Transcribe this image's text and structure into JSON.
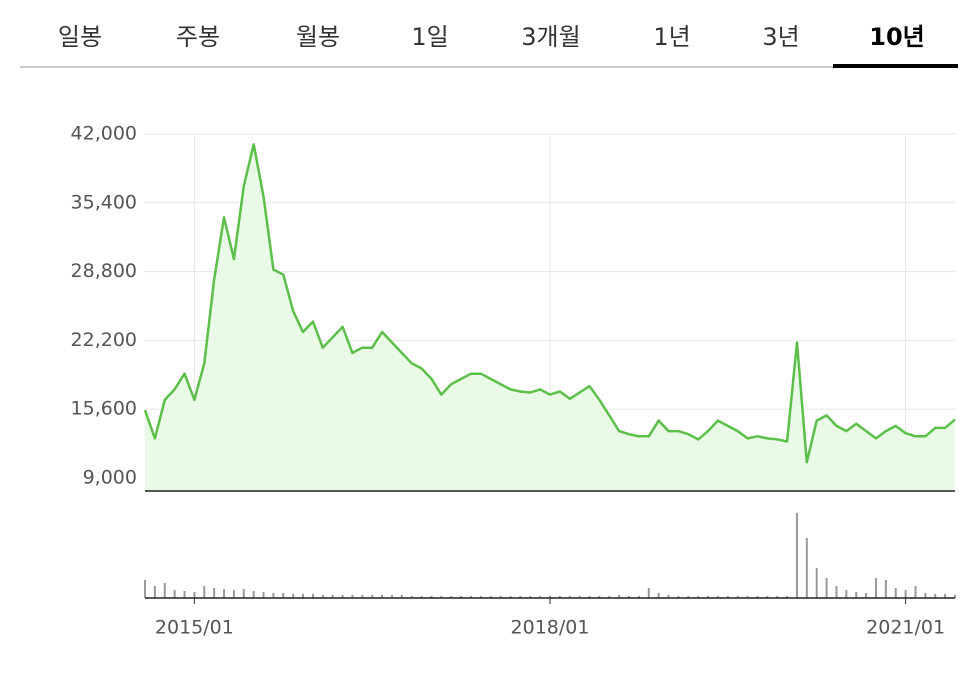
{
  "tabs": [
    "일봉",
    "주봉",
    "월봉",
    "1일",
    "3개월",
    "1년",
    "3년",
    "10년"
  ],
  "selected_tab": "10년",
  "chart_data": {
    "type": "line",
    "x": [
      "2014/08",
      "2014/09",
      "2014/10",
      "2014/11",
      "2014/12",
      "2015/01",
      "2015/02",
      "2015/03",
      "2015/04",
      "2015/05",
      "2015/06",
      "2015/07",
      "2015/08",
      "2015/09",
      "2015/10",
      "2015/11",
      "2015/12",
      "2016/01",
      "2016/02",
      "2016/03",
      "2016/04",
      "2016/05",
      "2016/06",
      "2016/07",
      "2016/08",
      "2016/09",
      "2016/10",
      "2016/11",
      "2016/12",
      "2017/01",
      "2017/02",
      "2017/03",
      "2017/04",
      "2017/05",
      "2017/06",
      "2017/07",
      "2017/08",
      "2017/09",
      "2017/10",
      "2017/11",
      "2017/12",
      "2018/01",
      "2018/02",
      "2018/03",
      "2018/04",
      "2018/05",
      "2018/06",
      "2018/07",
      "2018/08",
      "2018/09",
      "2018/10",
      "2018/11",
      "2018/12",
      "2019/01",
      "2019/02",
      "2019/03",
      "2019/04",
      "2019/05",
      "2019/06",
      "2019/07",
      "2019/08",
      "2019/09",
      "2019/10",
      "2019/11",
      "2019/12",
      "2020/01",
      "2020/02",
      "2020/03",
      "2020/04",
      "2020/05",
      "2020/06",
      "2020/07",
      "2020/08",
      "2020/09",
      "2020/10",
      "2020/11",
      "2020/12",
      "2021/01",
      "2021/02",
      "2021/03",
      "2021/04",
      "2021/05",
      "2021/06"
    ],
    "series": [
      {
        "color": "#5cbf4a",
        "fill": "#e9fbe6",
        "values": [
          15500,
          12800,
          16500,
          17500,
          19000,
          16500,
          20000,
          28000,
          34000,
          30000,
          37000,
          41000,
          36000,
          29000,
          28500,
          25000,
          23000,
          24000,
          21500,
          22500,
          23500,
          21000,
          21500,
          21500,
          23000,
          22000,
          21000,
          20000,
          19500,
          18500,
          17000,
          18000,
          18500,
          19000,
          19000,
          18500,
          18000,
          17500,
          17300,
          17200,
          17500,
          17000,
          17300,
          16600,
          17200,
          17800,
          16500,
          15000,
          13500,
          13200,
          13000,
          13000,
          14500,
          13500,
          13500,
          13200,
          12700,
          13500,
          14500,
          14000,
          13500,
          12800,
          13000,
          12800,
          12700,
          12500,
          22000,
          10500,
          14500,
          15000,
          14000,
          13500,
          14200,
          13500,
          12800,
          13500,
          14000,
          13300,
          13000,
          13000,
          13800,
          13800,
          14600
        ]
      }
    ],
    "volume": {
      "color": "#999999",
      "ylim": [
        0,
        100
      ],
      "values": [
        18,
        12,
        15,
        8,
        7,
        6,
        12,
        10,
        9,
        8,
        9,
        7,
        6,
        5,
        5,
        4,
        4,
        4,
        3,
        3,
        3,
        3,
        3,
        3,
        3,
        3,
        3,
        2,
        2,
        2,
        2,
        2,
        2,
        2,
        2,
        2,
        2,
        2,
        2,
        2,
        2,
        2,
        2,
        2,
        2,
        2,
        2,
        2,
        3,
        2,
        2,
        10,
        5,
        3,
        2,
        2,
        2,
        2,
        2,
        2,
        2,
        2,
        2,
        2,
        2,
        2,
        85,
        60,
        30,
        20,
        12,
        8,
        6,
        5,
        20,
        18,
        10,
        8,
        12,
        5,
        4,
        4,
        3
      ]
    },
    "ylim": [
      7750,
      42000
    ],
    "yticks": [
      {
        "value": 9000,
        "label": "9,000"
      },
      {
        "value": 15600,
        "label": "15,600"
      },
      {
        "value": 22200,
        "label": "22,200"
      },
      {
        "value": 28800,
        "label": "28,800"
      },
      {
        "value": 35400,
        "label": "35,400"
      },
      {
        "value": 42000,
        "label": "42,000"
      }
    ],
    "xticks": [
      "2015/01",
      "2018/01",
      "2021/01"
    ],
    "grid": true
  }
}
